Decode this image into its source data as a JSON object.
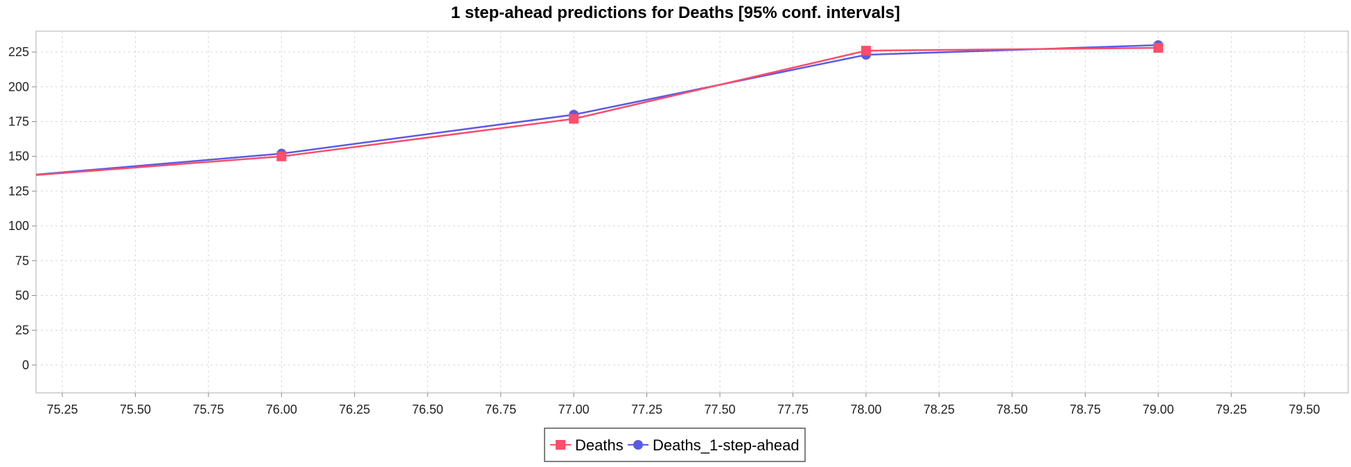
{
  "chart_data": {
    "type": "line",
    "title": "1 step-ahead predictions for Deaths [95% conf. intervals]",
    "xlabel": "",
    "ylabel": "",
    "xlim": [
      75.16,
      79.65
    ],
    "ylim": [
      -20,
      240
    ],
    "x_ticks": [
      75.25,
      75.5,
      75.75,
      76.0,
      76.25,
      76.5,
      76.75,
      77.0,
      77.25,
      77.5,
      77.75,
      78.0,
      78.25,
      78.5,
      78.75,
      79.0,
      79.25,
      79.5
    ],
    "x_tick_labels": [
      "75.25",
      "75.50",
      "75.75",
      "76.00",
      "76.25",
      "76.50",
      "76.75",
      "77.00",
      "77.25",
      "77.50",
      "77.75",
      "78.00",
      "78.25",
      "78.50",
      "78.75",
      "79.00",
      "79.25",
      "79.50"
    ],
    "y_ticks": [
      0,
      25,
      50,
      75,
      100,
      125,
      150,
      175,
      200,
      225
    ],
    "y_tick_labels": [
      "0",
      "25",
      "50",
      "75",
      "100",
      "125",
      "150",
      "175",
      "200",
      "225"
    ],
    "grid": true,
    "legend_position": "bottom-center",
    "series": [
      {
        "name": "Deaths",
        "color": "#ff4d6a",
        "marker": "square",
        "x": [
          75.0,
          76.0,
          77.0,
          78.0,
          79.0
        ],
        "y": [
          134,
          150,
          177,
          226,
          228
        ]
      },
      {
        "name": "Deaths_1-step-ahead",
        "color": "#5a5ae6",
        "marker": "circle",
        "x": [
          75.0,
          76.0,
          77.0,
          78.0,
          79.0
        ],
        "y": [
          134,
          152,
          180,
          223,
          230
        ]
      }
    ]
  }
}
